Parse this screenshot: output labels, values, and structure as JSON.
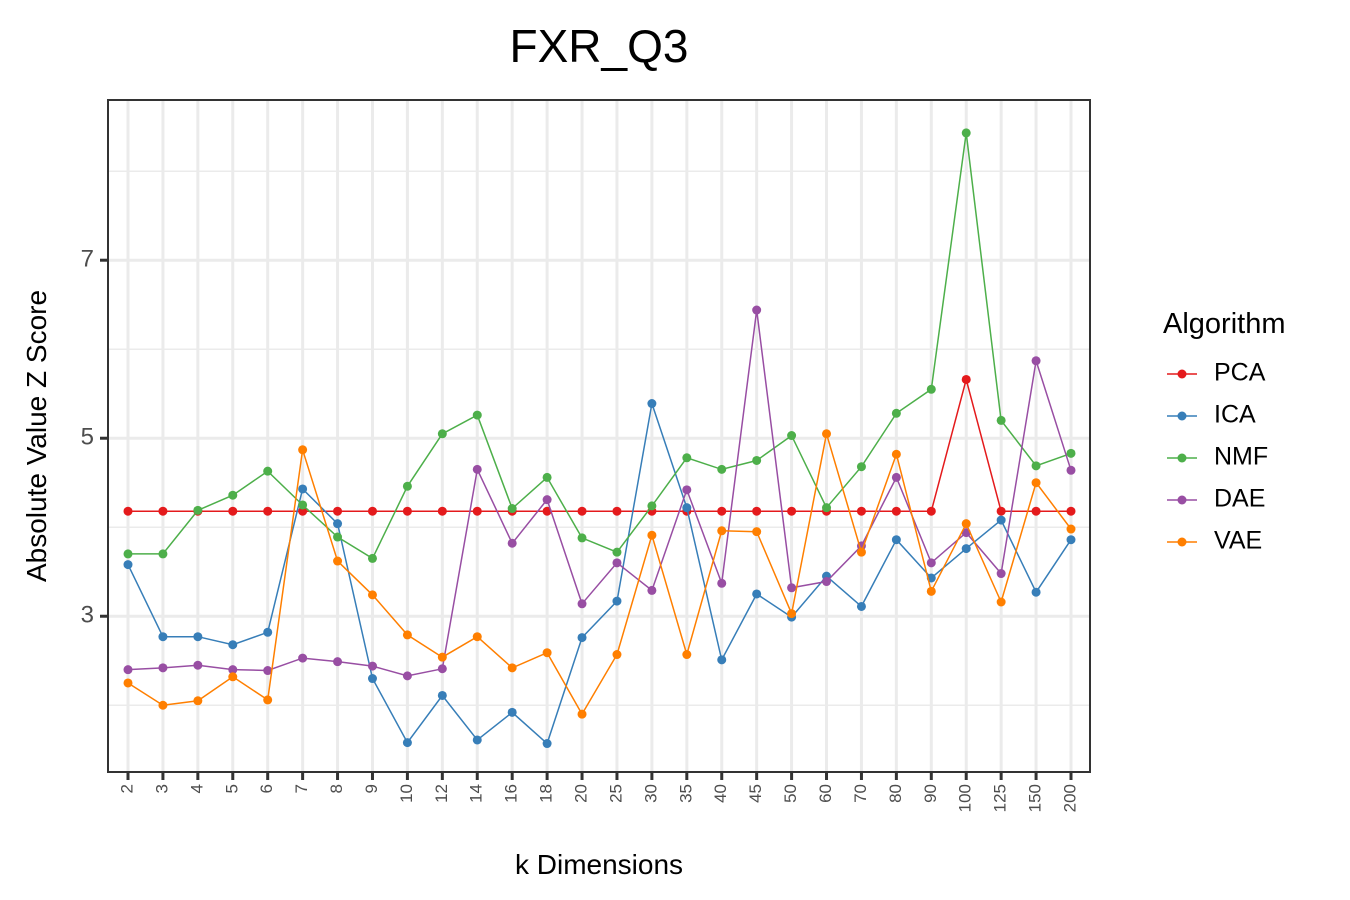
{
  "chart_data": {
    "type": "line",
    "title": "FXR_Q3",
    "xlabel": "k Dimensions",
    "ylabel": "Absolute Value Z Score",
    "x": [
      "2",
      "3",
      "4",
      "5",
      "6",
      "7",
      "8",
      "9",
      "10",
      "12",
      "14",
      "16",
      "18",
      "20",
      "25",
      "30",
      "35",
      "40",
      "45",
      "50",
      "60",
      "70",
      "80",
      "90",
      "100",
      "125",
      "150",
      "200"
    ],
    "ylim": [
      1.25,
      8.8
    ],
    "yticks": [
      3,
      5,
      7
    ],
    "grid": true,
    "legend_title": "Algorithm",
    "legend_position": "right",
    "series": [
      {
        "name": "PCA",
        "color": "#e41a1c",
        "values": [
          4.18,
          4.18,
          4.18,
          4.18,
          4.18,
          4.18,
          4.18,
          4.18,
          4.18,
          4.18,
          4.18,
          4.18,
          4.18,
          4.18,
          4.18,
          4.18,
          4.18,
          4.18,
          4.18,
          4.18,
          4.18,
          4.18,
          4.18,
          4.18,
          5.66,
          4.18,
          4.18,
          4.18
        ]
      },
      {
        "name": "ICA",
        "color": "#377eb8",
        "values": [
          3.58,
          2.77,
          2.77,
          2.68,
          2.82,
          4.43,
          4.04,
          2.3,
          1.58,
          2.11,
          1.61,
          1.92,
          1.57,
          2.76,
          3.17,
          5.39,
          4.22,
          2.51,
          3.25,
          2.99,
          3.45,
          3.11,
          3.86,
          3.43,
          3.76,
          4.08,
          3.27,
          3.86
        ]
      },
      {
        "name": "NMF",
        "color": "#4daf4a",
        "values": [
          3.7,
          3.7,
          4.19,
          4.36,
          4.63,
          4.25,
          3.89,
          3.65,
          4.46,
          5.05,
          5.26,
          4.21,
          4.56,
          3.88,
          3.72,
          4.24,
          4.78,
          4.65,
          4.75,
          5.03,
          4.22,
          4.68,
          5.28,
          5.55,
          8.43,
          5.2,
          4.69,
          4.83
        ]
      },
      {
        "name": "DAE",
        "color": "#984ea3",
        "values": [
          2.4,
          2.42,
          2.45,
          2.4,
          2.39,
          2.53,
          2.49,
          2.44,
          2.33,
          2.41,
          4.65,
          3.82,
          4.31,
          3.14,
          3.6,
          3.29,
          4.42,
          3.37,
          6.44,
          3.32,
          3.39,
          3.79,
          4.56,
          3.6,
          3.94,
          3.48,
          5.87,
          4.64
        ]
      },
      {
        "name": "VAE",
        "color": "#ff7f00",
        "values": [
          2.25,
          2.0,
          2.05,
          2.32,
          2.06,
          4.87,
          3.62,
          3.24,
          2.79,
          2.54,
          2.77,
          2.42,
          2.59,
          1.9,
          2.57,
          3.91,
          2.57,
          3.96,
          3.95,
          3.03,
          5.05,
          3.72,
          4.82,
          3.28,
          4.04,
          3.16,
          4.5,
          3.98
        ]
      }
    ]
  }
}
